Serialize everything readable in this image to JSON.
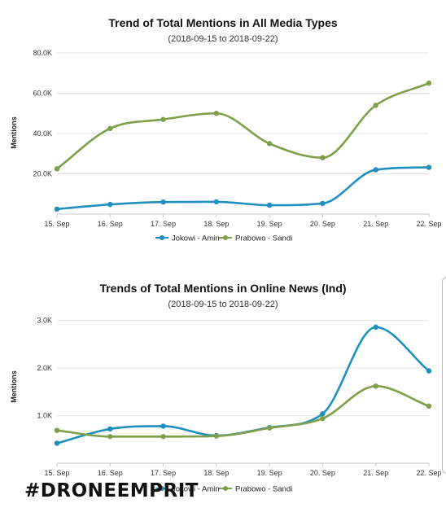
{
  "brand": "#DRONEEMPRIT",
  "chart_data": [
    {
      "type": "line",
      "title": "Trend of Total Mentions in All Media Types",
      "subtitle": "(2018-09-15 to 2018-09-22)",
      "xlabel": "",
      "ylabel": "Mentions",
      "categories": [
        "15. Sep",
        "16. Sep",
        "17. Sep",
        "18. Sep",
        "19. Sep",
        "20. Sep",
        "21. Sep",
        "22. Sep"
      ],
      "yticks": [
        "20.0K",
        "40.0K",
        "60.0K",
        "80.0K"
      ],
      "ytick_values": [
        20000,
        40000,
        60000,
        80000
      ],
      "ylim": [
        0,
        80000
      ],
      "grid": true,
      "legend_position": "bottom-center",
      "series": [
        {
          "name": "Jokowi - Amin",
          "color": "#1f8fbf",
          "values": [
            2500,
            4800,
            6000,
            6100,
            4400,
            5300,
            22000,
            23200
          ]
        },
        {
          "name": "Prabowo - Sandi",
          "color": "#7f9f4a",
          "values": [
            22500,
            42500,
            47000,
            50000,
            35000,
            28000,
            54000,
            65000
          ]
        }
      ]
    },
    {
      "type": "line",
      "title": "Trends of Total Mentions in Online News (Ind)",
      "subtitle": "(2018-09-15 to 2018-09-22)",
      "xlabel": "",
      "ylabel": "Mentions",
      "categories": [
        "15. Sep",
        "16. Sep",
        "17. Sep",
        "18. Sep",
        "19. Sep",
        "20. Sep",
        "21. Sep",
        "22. Sep"
      ],
      "yticks": [
        "1.0K",
        "2.0K",
        "3.0K"
      ],
      "ytick_values": [
        1000,
        2000,
        3000
      ],
      "ylim": [
        0,
        3200
      ],
      "grid": true,
      "legend_position": "bottom-center",
      "series": [
        {
          "name": "Jokowi - Amin",
          "color": "#1f8fbf",
          "values": [
            420,
            720,
            780,
            580,
            750,
            1040,
            2860,
            1940
          ]
        },
        {
          "name": "Prabowo - Sandi",
          "color": "#7f9f4a",
          "values": [
            690,
            560,
            560,
            570,
            740,
            940,
            1620,
            1200
          ]
        }
      ]
    }
  ]
}
